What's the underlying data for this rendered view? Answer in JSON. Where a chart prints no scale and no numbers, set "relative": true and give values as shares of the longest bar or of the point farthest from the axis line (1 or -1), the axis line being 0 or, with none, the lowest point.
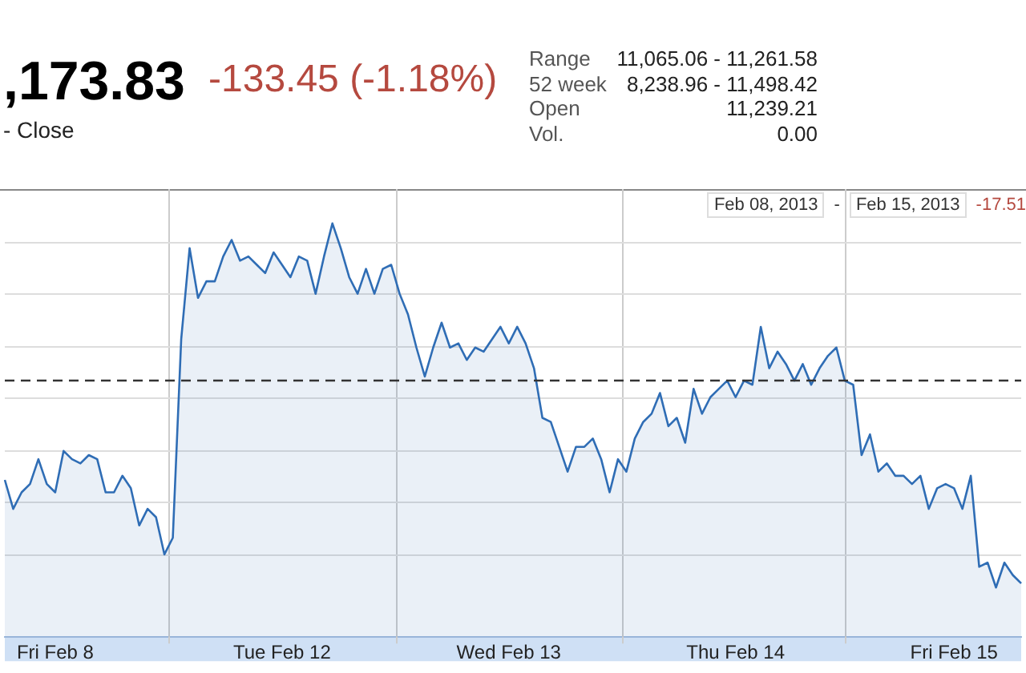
{
  "chart_data": {
    "type": "area",
    "title": ",173.83",
    "subtitle": "-133.45 (-1.18%)",
    "annotations": [
      "- Close",
      "Range",
      "11,065.06 - 11,261.58",
      "52 week",
      "8,238.96 - 11,498.42",
      "Open",
      "11,239.21",
      "Vol.",
      "0.00",
      "Feb 08, 2013",
      "-",
      "Feb 15, 2013",
      "-17.51"
    ],
    "relative": true,
    "grid": true,
    "categories": [
      null,
      null,
      null,
      null,
      null,
      null,
      "Fri Feb 8",
      null,
      null,
      null,
      null,
      null,
      null,
      null,
      null,
      null,
      null,
      null,
      null,
      null,
      null,
      null,
      null,
      null,
      null,
      null,
      null,
      null,
      null,
      null,
      null,
      null,
      null,
      "Tue Feb 12",
      null,
      null,
      null,
      null,
      null,
      null,
      null,
      null,
      null,
      null,
      null,
      null,
      null,
      null,
      null,
      null,
      null,
      null,
      null,
      null,
      null,
      null,
      null,
      null,
      null,
      null,
      "Wed Feb 13",
      null,
      null,
      null,
      null,
      null,
      null,
      null,
      null,
      null,
      null,
      null,
      null,
      null,
      null,
      null,
      null,
      null,
      null,
      null,
      null,
      null,
      null,
      null,
      null,
      null,
      null,
      "Thu Feb 14",
      null,
      null,
      null,
      null,
      null,
      null,
      null,
      null,
      null,
      null,
      null,
      null,
      null,
      null,
      null,
      null,
      null,
      null,
      null,
      null,
      null,
      null,
      null,
      null,
      null,
      "Fri Feb 15",
      null,
      null,
      null,
      null,
      null,
      null,
      null,
      null
    ],
    "ref_lines": [
      {
        "axis": "y",
        "value": 0.62,
        "label": null,
        "color": "#333333",
        "line_style": "dashed"
      }
    ],
    "series": [
      {
        "color": "#2f6db5",
        "values": [
          0.38,
          0.31,
          0.35,
          0.37,
          0.43,
          0.37,
          0.35,
          0.45,
          0.43,
          0.42,
          0.44,
          0.43,
          0.35,
          0.35,
          0.39,
          0.36,
          0.27,
          0.31,
          0.29,
          0.2,
          0.24,
          0.72,
          0.94,
          0.82,
          0.86,
          0.86,
          0.92,
          0.96,
          0.91,
          0.92,
          0.9,
          0.88,
          0.93,
          0.9,
          0.87,
          0.92,
          0.91,
          0.83,
          0.92,
          1,
          0.94,
          0.87,
          0.83,
          0.89,
          0.83,
          0.89,
          0.9,
          0.83,
          0.78,
          0.7,
          0.63,
          0.7,
          0.76,
          0.7,
          0.71,
          0.67,
          0.7,
          0.69,
          0.72,
          0.75,
          0.71,
          0.75,
          0.71,
          0.65,
          0.53,
          0.52,
          0.46,
          0.4,
          0.46,
          0.46,
          0.48,
          0.43,
          0.35,
          0.43,
          0.4,
          0.48,
          0.52,
          0.54,
          0.59,
          0.51,
          0.53,
          0.47,
          0.6,
          0.54,
          0.58,
          0.6,
          0.62,
          0.58,
          0.62,
          0.61,
          0.75,
          0.65,
          0.69,
          0.66,
          0.62,
          0.66,
          0.61,
          0.65,
          0.68,
          0.7,
          0.62,
          0.61,
          0.44,
          0.49,
          0.4,
          0.42,
          0.39,
          0.39,
          0.37,
          0.39,
          0.31,
          0.36,
          0.37,
          0.36,
          0.31,
          0.39,
          0.17,
          0.18,
          0.12,
          0.18,
          0.15,
          0.13
        ]
      }
    ]
  }
}
